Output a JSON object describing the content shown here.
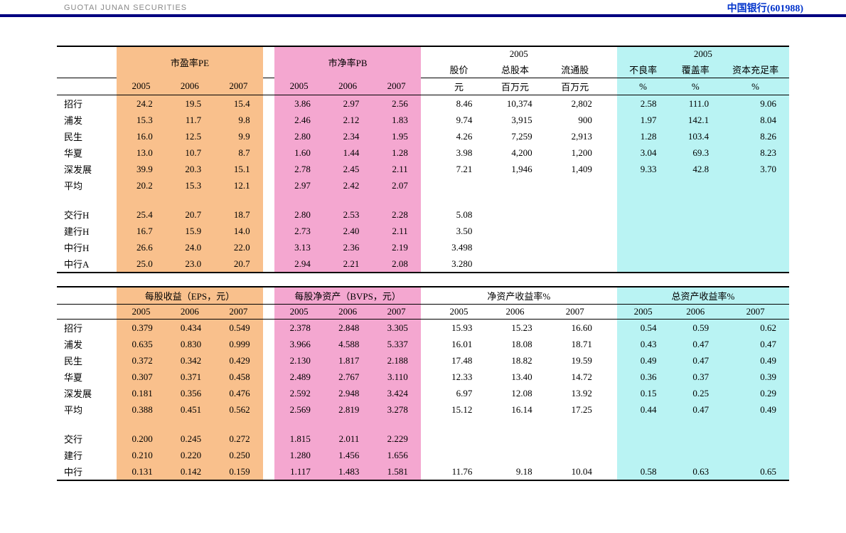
{
  "header": {
    "brand": "GUOTAI JUNAN SECURITIES",
    "ticker_prefix": "中国银行",
    "ticker_code": "(601988)"
  },
  "colors": {
    "orange": "#f9c08c",
    "pink": "#f4a7d0",
    "cyan": "#b9f3f3",
    "white": "#ffffff",
    "navy_border": "#000080",
    "ticker_blue": "#0033cc"
  },
  "typography": {
    "base_size_pt": 10,
    "header_size_pt": 11
  },
  "table1": {
    "groups": {
      "pe": {
        "title": "市盈率PE",
        "sub": [
          "2005",
          "2006",
          "2007"
        ],
        "bg": "#f9c08c"
      },
      "pb": {
        "title": "市净率PB",
        "sub": [
          "2005",
          "2006",
          "2007"
        ],
        "bg": "#f4a7d0"
      },
      "share": {
        "super": "2005",
        "sub": [
          {
            "label": "股价",
            "unit": "元"
          },
          {
            "label": "总股本",
            "unit": "百万元"
          },
          {
            "label": "流通股",
            "unit": "百万元"
          }
        ],
        "bg": "#ffffff"
      },
      "ratio": {
        "super": "2005",
        "sub": [
          {
            "label": "不良率",
            "unit": "%"
          },
          {
            "label": "覆盖率",
            "unit": "%"
          },
          {
            "label": "资本充足率",
            "unit": "%"
          }
        ],
        "bg": "#b9f3f3"
      }
    },
    "rows": [
      {
        "label": "招行",
        "pe": [
          "24.2",
          "19.5",
          "15.4"
        ],
        "pb": [
          "3.86",
          "2.97",
          "2.56"
        ],
        "share": [
          "8.46",
          "10,374",
          "2,802"
        ],
        "ratio": [
          "2.58",
          "111.0",
          "9.06"
        ]
      },
      {
        "label": "浦发",
        "pe": [
          "15.3",
          "11.7",
          "9.8"
        ],
        "pb": [
          "2.46",
          "2.12",
          "1.83"
        ],
        "share": [
          "9.74",
          "3,915",
          "900"
        ],
        "ratio": [
          "1.97",
          "142.1",
          "8.04"
        ]
      },
      {
        "label": "民生",
        "pe": [
          "16.0",
          "12.5",
          "9.9"
        ],
        "pb": [
          "2.80",
          "2.34",
          "1.95"
        ],
        "share": [
          "4.26",
          "7,259",
          "2,913"
        ],
        "ratio": [
          "1.28",
          "103.4",
          "8.26"
        ]
      },
      {
        "label": "华夏",
        "pe": [
          "13.0",
          "10.7",
          "8.7"
        ],
        "pb": [
          "1.60",
          "1.44",
          "1.28"
        ],
        "share": [
          "3.98",
          "4,200",
          "1,200"
        ],
        "ratio": [
          "3.04",
          "69.3",
          "8.23"
        ]
      },
      {
        "label": "深发展",
        "pe": [
          "39.9",
          "20.3",
          "15.1"
        ],
        "pb": [
          "2.78",
          "2.45",
          "2.11"
        ],
        "share": [
          "7.21",
          "1,946",
          "1,409"
        ],
        "ratio": [
          "9.33",
          "42.8",
          "3.70"
        ]
      },
      {
        "label": "平均",
        "pe": [
          "20.2",
          "15.3",
          "12.1"
        ],
        "pb": [
          "2.97",
          "2.42",
          "2.07"
        ],
        "share": [
          "",
          "",
          ""
        ],
        "ratio": [
          "",
          "",
          ""
        ]
      }
    ],
    "rows2": [
      {
        "label": "交行H",
        "pe": [
          "25.4",
          "20.7",
          "18.7"
        ],
        "pb": [
          "2.80",
          "2.53",
          "2.28"
        ],
        "share": [
          "5.08",
          "",
          ""
        ],
        "ratio": [
          "",
          "",
          ""
        ]
      },
      {
        "label": "建行H",
        "pe": [
          "16.7",
          "15.9",
          "14.0"
        ],
        "pb": [
          "2.73",
          "2.40",
          "2.11"
        ],
        "share": [
          "3.50",
          "",
          ""
        ],
        "ratio": [
          "",
          "",
          ""
        ]
      },
      {
        "label": "中行H",
        "pe": [
          "26.6",
          "24.0",
          "22.0"
        ],
        "pb": [
          "3.13",
          "2.36",
          "2.19"
        ],
        "share": [
          "3.498",
          "",
          ""
        ],
        "ratio": [
          "",
          "",
          ""
        ]
      },
      {
        "label": "中行A",
        "pe": [
          "25.0",
          "23.0",
          "20.7"
        ],
        "pb": [
          "2.94",
          "2.21",
          "2.08"
        ],
        "share": [
          "3.280",
          "",
          ""
        ],
        "ratio": [
          "",
          "",
          ""
        ]
      }
    ]
  },
  "table2": {
    "groups": {
      "eps": {
        "title": "每股收益（EPS，元）",
        "sub": [
          "2005",
          "2006",
          "2007"
        ],
        "bg": "#f9c08c"
      },
      "bvps": {
        "title": "每股净资产（BVPS，元）",
        "sub": [
          "2005",
          "2006",
          "2007"
        ],
        "bg": "#f4a7d0"
      },
      "roe": {
        "title": "净资产收益率%",
        "sub": [
          "2005",
          "2006",
          "2007"
        ],
        "bg": "#ffffff"
      },
      "roa": {
        "title": "总资产收益率%",
        "sub": [
          "2005",
          "2006",
          "2007"
        ],
        "bg": "#b9f3f3"
      }
    },
    "rows": [
      {
        "label": "招行",
        "eps": [
          "0.379",
          "0.434",
          "0.549"
        ],
        "bvps": [
          "2.378",
          "2.848",
          "3.305"
        ],
        "roe": [
          "15.93",
          "15.23",
          "16.60"
        ],
        "roa": [
          "0.54",
          "0.59",
          "0.62"
        ]
      },
      {
        "label": "浦发",
        "eps": [
          "0.635",
          "0.830",
          "0.999"
        ],
        "bvps": [
          "3.966",
          "4.588",
          "5.337"
        ],
        "roe": [
          "16.01",
          "18.08",
          "18.71"
        ],
        "roa": [
          "0.43",
          "0.47",
          "0.47"
        ]
      },
      {
        "label": "民生",
        "eps": [
          "0.372",
          "0.342",
          "0.429"
        ],
        "bvps": [
          "2.130",
          "1.817",
          "2.188"
        ],
        "roe": [
          "17.48",
          "18.82",
          "19.59"
        ],
        "roa": [
          "0.49",
          "0.47",
          "0.49"
        ]
      },
      {
        "label": "华夏",
        "eps": [
          "0.307",
          "0.371",
          "0.458"
        ],
        "bvps": [
          "2.489",
          "2.767",
          "3.110"
        ],
        "roe": [
          "12.33",
          "13.40",
          "14.72"
        ],
        "roa": [
          "0.36",
          "0.37",
          "0.39"
        ]
      },
      {
        "label": "深发展",
        "eps": [
          "0.181",
          "0.356",
          "0.476"
        ],
        "bvps": [
          "2.592",
          "2.948",
          "3.424"
        ],
        "roe": [
          "6.97",
          "12.08",
          "13.92"
        ],
        "roa": [
          "0.15",
          "0.25",
          "0.29"
        ]
      },
      {
        "label": "平均",
        "eps": [
          "0.388",
          "0.451",
          "0.562"
        ],
        "bvps": [
          "2.569",
          "2.819",
          "3.278"
        ],
        "roe": [
          "15.12",
          "16.14",
          "17.25"
        ],
        "roa": [
          "0.44",
          "0.47",
          "0.49"
        ]
      }
    ],
    "rows2": [
      {
        "label": "交行",
        "eps": [
          "0.200",
          "0.245",
          "0.272"
        ],
        "bvps": [
          "1.815",
          "2.011",
          "2.229"
        ],
        "roe": [
          "",
          "",
          ""
        ],
        "roa": [
          "",
          "",
          ""
        ]
      },
      {
        "label": "建行",
        "eps": [
          "0.210",
          "0.220",
          "0.250"
        ],
        "bvps": [
          "1.280",
          "1.456",
          "1.656"
        ],
        "roe": [
          "",
          "",
          ""
        ],
        "roa": [
          "",
          "",
          ""
        ]
      },
      {
        "label": "中行",
        "eps": [
          "0.131",
          "0.142",
          "0.159"
        ],
        "bvps": [
          "1.117",
          "1.483",
          "1.581"
        ],
        "roe": [
          "11.76",
          "9.18",
          "10.04"
        ],
        "roa": [
          "0.58",
          "0.63",
          "0.65"
        ]
      }
    ]
  }
}
